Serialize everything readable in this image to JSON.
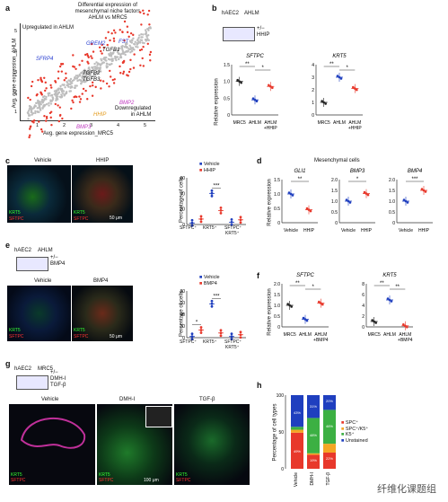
{
  "panel_labels": {
    "a": "a",
    "b": "b",
    "c": "c",
    "d": "d",
    "e": "e",
    "f": "f",
    "g": "g",
    "h": "h"
  },
  "panel_a": {
    "title_line1": "Differential expression of",
    "title_line2": "mesenchymal niche factors",
    "title_line3": "AHLM vs MRC5",
    "up_label": "Upregulated in AHLM",
    "down_label_1": "Downregulated",
    "down_label_2": "in AHLM",
    "ylabel": "Avg. gene expression_AHLM",
    "xlabel": "Avg. gene expression_MRC5",
    "ticks": [
      "1",
      "2",
      "3",
      "4",
      "5"
    ],
    "genes": {
      "gremlin": "GREM2",
      "fst": "FST",
      "sfrp4": "SFRP4",
      "tgfb1": "TGFB1",
      "tgfb2": "TGFB2",
      "tgfb3": "TGFB3",
      "bmp2": "BMP2",
      "hhip": "HHIP",
      "bmp3": "BMP3"
    }
  },
  "panel_b": {
    "cell1": "hAEC2",
    "cell2": "AHLM",
    "treat": "+/−",
    "treat2": "HHIP",
    "ylabel": "Relative expression",
    "chart_data": [
      {
        "type": "scatter",
        "title": "SFTPC",
        "categories": [
          "MRC5",
          "AHLM",
          "AHLM +HHIP"
        ],
        "values": [
          1.0,
          0.45,
          0.85
        ],
        "ylim": [
          0,
          1.5
        ],
        "yticks": [
          "0",
          "0.5",
          "1.0",
          "1.5"
        ],
        "sig": [
          "**",
          "*"
        ]
      },
      {
        "type": "scatter",
        "title": "KRT5",
        "categories": [
          "MRC5",
          "AHLM",
          "AHLM +HHIP"
        ],
        "values": [
          1.0,
          3.0,
          2.1
        ],
        "ylim": [
          0,
          4
        ],
        "yticks": [
          "0",
          "1",
          "2",
          "3",
          "4"
        ],
        "sig": [
          "**",
          "*"
        ]
      }
    ],
    "cats_bottom": [
      "MRC5",
      "AHLM",
      "AHLM",
      "+HHIP"
    ]
  },
  "panel_c": {
    "img_vehicle": "Vehicle",
    "img_hhip": "HHIP",
    "stain_krt5": "KRT5",
    "stain_sftpc": "SFTPC",
    "scale": "50 μm",
    "legend_vehicle": "Vehicle",
    "legend_hhip": "HHIP",
    "ylabel": "Percentage of cells",
    "chart_data": {
      "type": "scatter",
      "categories": [
        "SFTPC+",
        "KRT5+",
        "SFTPC+ KRT5+"
      ],
      "series": [
        {
          "name": "Vehicle",
          "values": [
            2,
            40,
            3
          ]
        },
        {
          "name": "HHIP",
          "values": [
            7,
            18,
            6
          ]
        }
      ],
      "ylim": [
        0,
        60
      ],
      "yticks": [
        "0",
        "20",
        "40",
        "60"
      ],
      "sig": "***"
    },
    "xcats": [
      "SFTPC⁺",
      "KRT5⁺",
      "SFTPC⁺",
      "KRT5⁺"
    ]
  },
  "panel_d": {
    "title": "Mesenchymal cells",
    "ylabel": "Relative expression",
    "chart_data": [
      {
        "type": "scatter",
        "title": "GLI1",
        "categories": [
          "Vehicle",
          "HHIP"
        ],
        "values": [
          1.0,
          0.45
        ],
        "ylim": [
          0,
          1.5
        ],
        "yticks": [
          "0",
          "0.5",
          "1.0",
          "1.5"
        ],
        "sig": "**"
      },
      {
        "type": "scatter",
        "title": "BMP3",
        "categories": [
          "Vehicle",
          "HHIP"
        ],
        "values": [
          1.0,
          1.35
        ],
        "ylim": [
          0,
          2
        ],
        "yticks": [
          "0",
          "0.5",
          "1.0",
          "1.5",
          "2.0"
        ],
        "sig": "*"
      },
      {
        "type": "scatter",
        "title": "BMP4",
        "categories": [
          "Vehicle",
          "HHIP"
        ],
        "values": [
          1.0,
          1.5
        ],
        "ylim": [
          0,
          2
        ],
        "yticks": [
          "0",
          "0.5",
          "1.0",
          "1.5",
          "2.0"
        ],
        "sig": "***"
      }
    ],
    "cat_vehicle": "Vehicle",
    "cat_hhip": "HHIP"
  },
  "panel_e": {
    "cell1": "hAEC2",
    "cell2": "AHLM",
    "treat": "+/−",
    "treat2": "BMP4",
    "img_vehicle": "Vehicle",
    "img_bmp4": "BMP4",
    "stain_krt5": "KRT5",
    "stain_sftpc": "SFTPC",
    "scale": "50 μm",
    "legend_vehicle": "Vehicle",
    "legend_bmp4": "BMP4",
    "ylabel": "Percentage of cells",
    "chart_data": {
      "type": "scatter",
      "categories": [
        "SFTPC+",
        "KRT5+",
        "SFTPC+ KRT5+"
      ],
      "series": [
        {
          "name": "Vehicle",
          "values": [
            2,
            58,
            2
          ]
        },
        {
          "name": "BMP4",
          "values": [
            13,
            8,
            5
          ]
        }
      ],
      "ylim": [
        0,
        80
      ],
      "yticks": [
        "0",
        "20",
        "40",
        "60",
        "80"
      ],
      "sig": [
        "*",
        "***"
      ]
    },
    "xcats": [
      "SFTPC⁺",
      "KRT5⁺",
      "SFTPC⁺",
      "KRT5⁺"
    ]
  },
  "panel_f": {
    "ylabel": "Relative expression",
    "chart_data": [
      {
        "type": "scatter",
        "title": "SFTPC",
        "categories": [
          "MRC5",
          "AHLM",
          "AHLM +BMP4"
        ],
        "values": [
          1.0,
          0.35,
          1.1
        ],
        "ylim": [
          0,
          2
        ],
        "yticks": [
          "0",
          "0.5",
          "1.0",
          "1.5",
          "2.0"
        ],
        "sig": [
          "**",
          "*"
        ]
      },
      {
        "type": "scatter",
        "title": "KRT5",
        "categories": [
          "MRC5",
          "AHLM",
          "AHLM +BMP4"
        ],
        "values": [
          1.0,
          5.0,
          0.2
        ],
        "ylim": [
          0,
          8
        ],
        "yticks": [
          "0",
          "2",
          "4",
          "6",
          "8"
        ],
        "sig": [
          "**",
          "**"
        ]
      }
    ],
    "cats_bottom": [
      "MRC5",
      "AHLM",
      "AHLM",
      "+BMP4"
    ]
  },
  "panel_g": {
    "cell1": "hAEC2",
    "cell2": "MRC5",
    "treat": "+/−",
    "treat2": "DMH-I",
    "treat3": "TGF-β",
    "img_vehicle": "Vehicle",
    "img_dmh": "DMH-I",
    "img_tgf": "TGF-β",
    "stain_krt5": "KRT5",
    "stain_sftpc": "SFTPC",
    "scale": "100 μm"
  },
  "panel_h": {
    "ylabel": "Percentage of cell types",
    "legend": [
      "SPC⁺",
      "SPC⁺/K5⁺",
      "K5⁺",
      "Unstained"
    ],
    "colors": {
      "spc": "#e8382b",
      "spck5": "#f5a623",
      "k5": "#3cb043",
      "unstained": "#1f3fbf"
    },
    "chart_data": {
      "type": "bar",
      "categories": [
        "Vehicle",
        "DMH-I",
        "TGF-β"
      ],
      "series": [
        {
          "name": "SPC⁺",
          "values": [
            49,
            19,
            22
          ]
        },
        {
          "name": "SPC⁺/K5⁺",
          "values": [
            4,
            2,
            12
          ]
        },
        {
          "name": "K5⁺",
          "values": [
            4,
            48,
            46
          ]
        },
        {
          "name": "Unstained",
          "values": [
            43,
            31,
            20
          ]
        }
      ],
      "ylim": [
        0,
        100
      ]
    },
    "seg_labels": {
      "veh_top": "43%",
      "veh_bot": "49%",
      "dmh_top": "31%",
      "dmh_mid": "48%",
      "dmh_bot": "19%",
      "tgf_top": "20%",
      "tgf_mid": "46%",
      "tgf_bot": "22%"
    }
  },
  "watermark": "纤维化课题组"
}
